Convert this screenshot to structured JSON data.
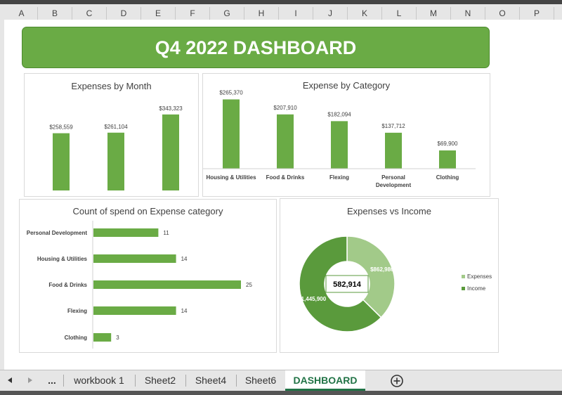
{
  "columns": [
    "A",
    "B",
    "C",
    "D",
    "E",
    "F",
    "G",
    "H",
    "I",
    "J",
    "K",
    "L",
    "M",
    "N",
    "O",
    "P"
  ],
  "dashboard_title": "Q4 2022 DASHBOARD",
  "tabs": {
    "items": [
      "workbook 1",
      "Sheet2",
      "Sheet4",
      "Sheet6",
      "DASHBOARD"
    ],
    "ellipsis": "...",
    "active": "DASHBOARD"
  },
  "icons": {
    "prev": "triangle-left-icon",
    "next": "triangle-right-icon",
    "add": "plus-circle-icon"
  },
  "colors": {
    "green": "#6aab45",
    "dark_green": "#5a9a3c",
    "light_green": "#a2ca89",
    "tab_active": "#217346"
  },
  "chart_data": [
    {
      "type": "bar",
      "title": "Expenses by Month",
      "categories": [
        "",
        "",
        ""
      ],
      "values": [
        258559,
        261104,
        343323
      ],
      "labels": [
        "$258,559",
        "$261,104",
        "$343,323"
      ],
      "ylim": [
        0,
        400000
      ]
    },
    {
      "type": "bar",
      "title": "Expense by Category",
      "categories": [
        "Housing & Utilities",
        "Food & Drinks",
        "Flexing",
        "Personal Development",
        "Clothing"
      ],
      "values": [
        265370,
        207910,
        182094,
        137712,
        69900
      ],
      "labels": [
        "$265,370",
        "$207,910",
        "$182,094",
        "$137,712",
        "$69,900"
      ],
      "ylim": [
        0,
        280000
      ]
    },
    {
      "type": "bar",
      "orientation": "horizontal",
      "title": "Count of spend on Expense category",
      "categories": [
        "Personal Development",
        "Housing & Utilities",
        "Food & Drinks",
        "Flexing",
        "Clothing"
      ],
      "values": [
        11,
        14,
        25,
        14,
        3
      ],
      "xlim": [
        0,
        25
      ]
    },
    {
      "type": "pie",
      "donut": true,
      "title": "Expenses vs Income",
      "slices": [
        {
          "name": "Expenses",
          "value": 862986,
          "label": "$862,986"
        },
        {
          "name": "Income",
          "value": 1445900,
          "label": "$1,445,900"
        }
      ],
      "center_label": "582,914",
      "legend": "right"
    }
  ]
}
